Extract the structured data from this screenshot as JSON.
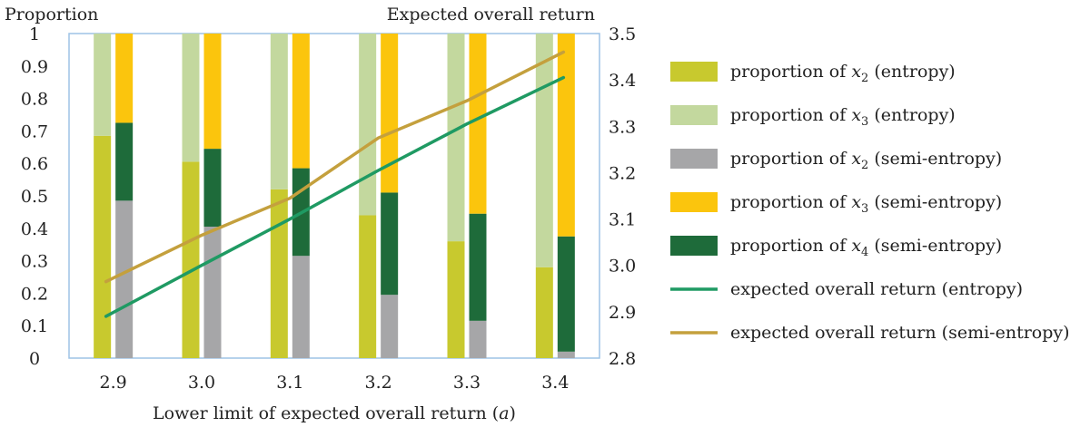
{
  "chart_data": {
    "type": "bar",
    "y_left_label": "Proportion",
    "y_right_label": "Expected overall return",
    "xlabel": "Lower limit of expected overall return (a)",
    "categories": [
      "2.9",
      "3.0",
      "3.1",
      "3.2",
      "3.3",
      "3.4"
    ],
    "y_left_range": [
      0,
      1
    ],
    "y_left_ticks": [
      "0",
      "0.1",
      "0.2",
      "0.3",
      "0.4",
      "0.5",
      "0.6",
      "0.7",
      "0.8",
      "0.9",
      "1"
    ],
    "y_right_range": [
      2.8,
      3.5
    ],
    "y_right_ticks": [
      "2.8",
      "2.9",
      "3.0",
      "3.1",
      "3.2",
      "3.3",
      "3.4",
      "3.5"
    ],
    "grid": false,
    "legend_position": "right",
    "entropy_stack": [
      {
        "name": "proportion of x2 (entropy)",
        "color": "#c8c92e",
        "values": [
          0.685,
          0.605,
          0.52,
          0.44,
          0.36,
          0.28
        ]
      },
      {
        "name": "proportion of x3 (entropy)",
        "color": "#c3d89e",
        "values": [
          0.315,
          0.395,
          0.48,
          0.56,
          0.64,
          0.72
        ]
      }
    ],
    "semi_entropy_stack": [
      {
        "name": "proportion of x2 (semi-entropy)",
        "color": "#a6a6a8",
        "values": [
          0.485,
          0.405,
          0.315,
          0.195,
          0.115,
          0.02
        ]
      },
      {
        "name": "proportion of x4 (semi-entropy)",
        "color": "#1e6b3a",
        "values": [
          0.24,
          0.24,
          0.27,
          0.315,
          0.33,
          0.355
        ]
      },
      {
        "name": "proportion of x3 (semi-entropy)",
        "color": "#fbc50d",
        "values": [
          0.275,
          0.355,
          0.415,
          0.49,
          0.555,
          0.625
        ]
      }
    ],
    "lines": [
      {
        "name": "expected overall return (entropy)",
        "color": "#1f9a63",
        "values": [
          2.89,
          3.0,
          3.1,
          3.205,
          3.305,
          3.405
        ]
      },
      {
        "name": "expected overall return (semi-entropy)",
        "color": "#c4a03d",
        "values": [
          2.965,
          3.065,
          3.145,
          3.275,
          3.355,
          3.46
        ]
      }
    ],
    "legend": [
      {
        "kind": "patch",
        "color": "#c8c92e",
        "pre": "proportion of ",
        "var": "x",
        "sub": "2",
        "post": " (entropy)"
      },
      {
        "kind": "patch",
        "color": "#c3d89e",
        "pre": "proportion of ",
        "var": "x",
        "sub": "3",
        "post": " (entropy)"
      },
      {
        "kind": "patch",
        "color": "#a6a6a8",
        "pre": "proportion of ",
        "var": "x",
        "sub": "2",
        "post": " (semi-entropy)"
      },
      {
        "kind": "patch",
        "color": "#fbc50d",
        "pre": "proportion of ",
        "var": "x",
        "sub": "3",
        "post": " (semi-entropy)"
      },
      {
        "kind": "patch",
        "color": "#1e6b3a",
        "pre": "proportion of ",
        "var": "x",
        "sub": "4",
        "post": " (semi-entropy)"
      },
      {
        "kind": "line",
        "color": "#1f9a63",
        "pre": "expected overall return (entropy)",
        "var": "",
        "sub": "",
        "post": ""
      },
      {
        "kind": "line",
        "color": "#c4a03d",
        "pre": "expected overall return (semi-entropy)",
        "var": "",
        "sub": "",
        "post": ""
      }
    ]
  }
}
